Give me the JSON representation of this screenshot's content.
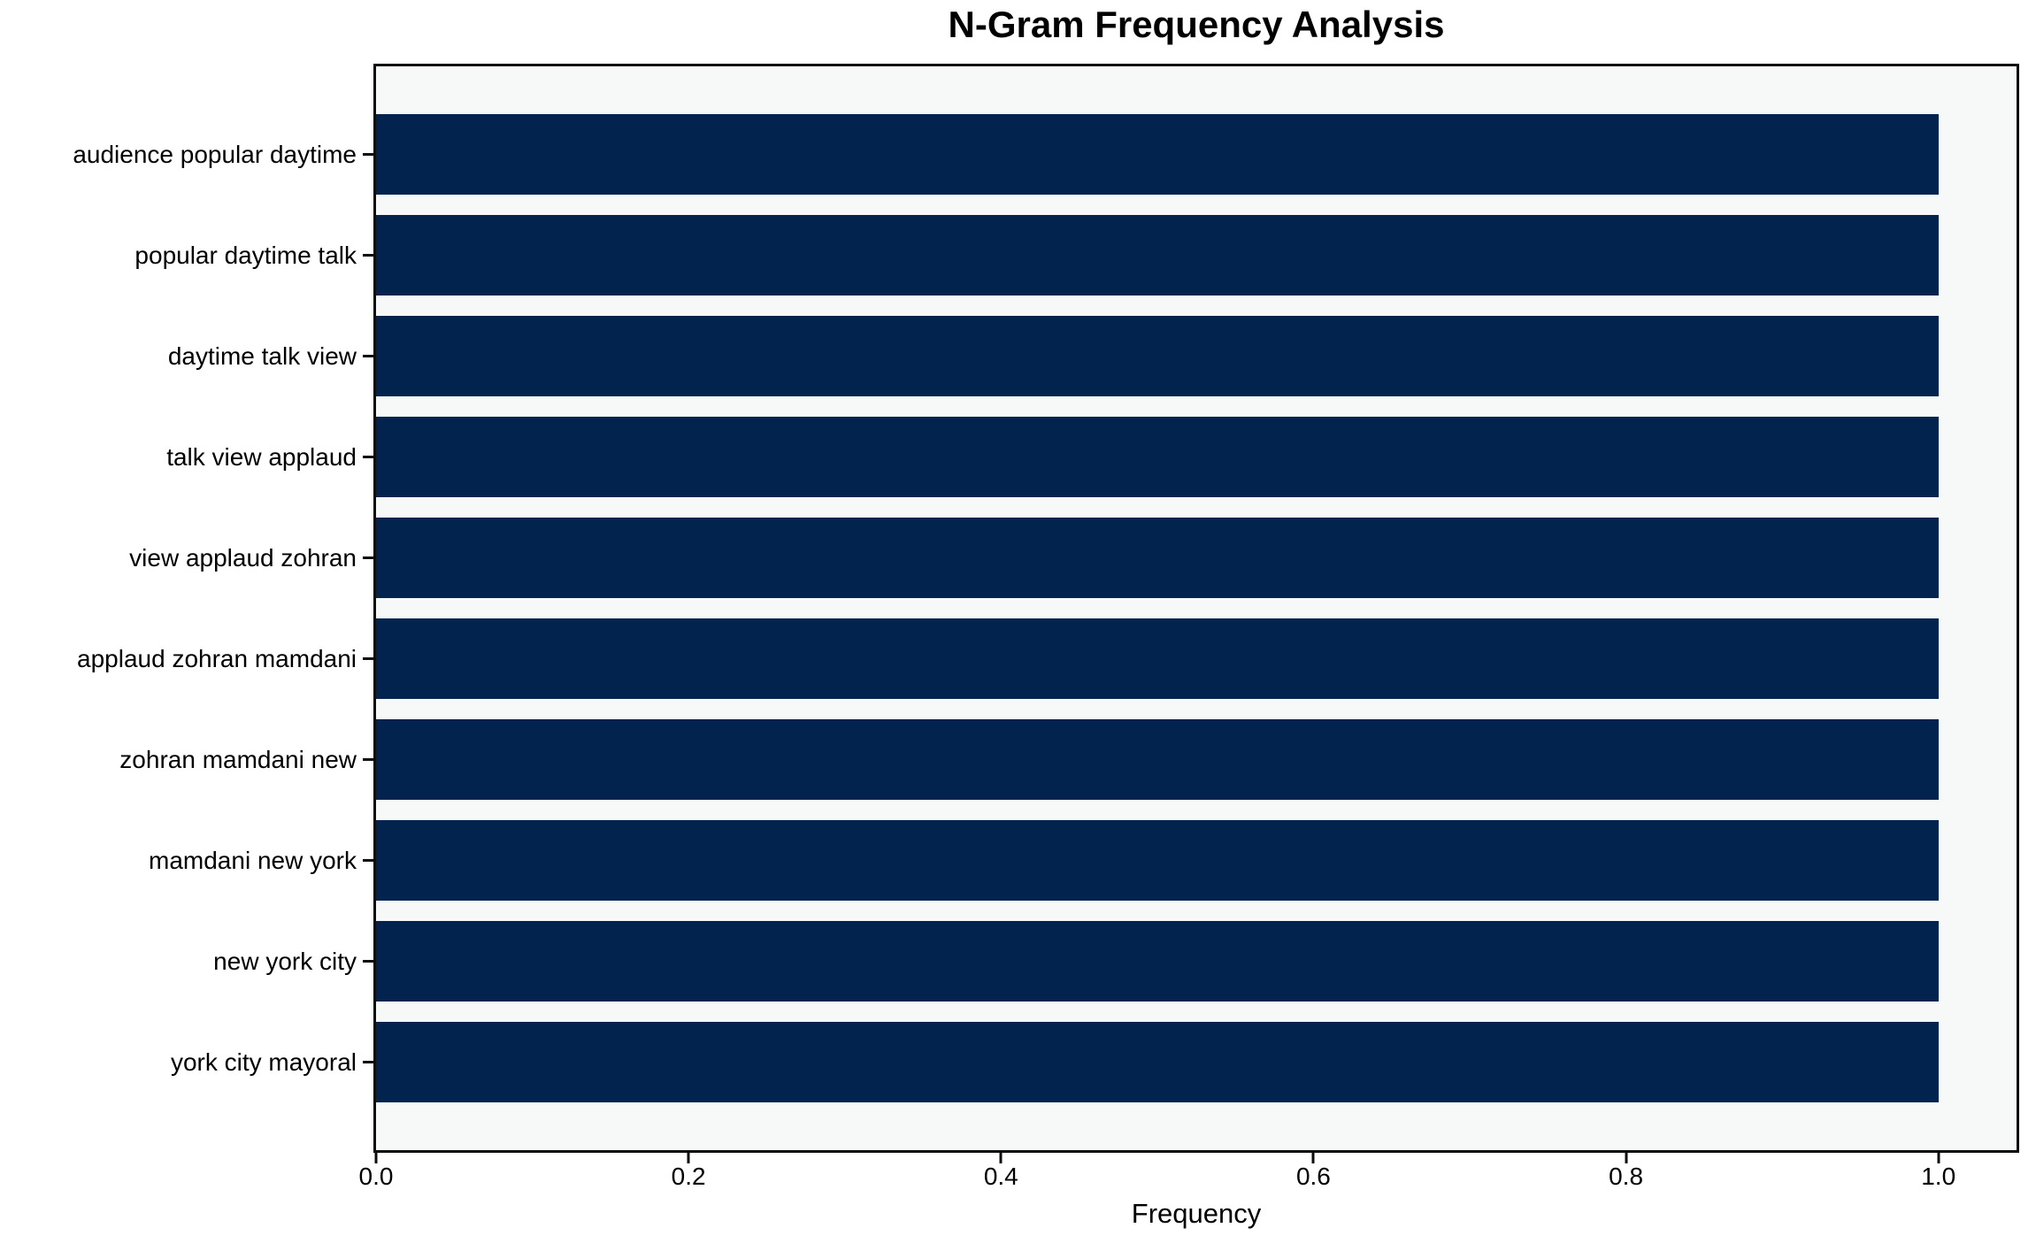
{
  "figure": {
    "background_color": "#ffffff",
    "plot_background_color": "#f7f8f8",
    "spine_color": "#0c0c0c",
    "text_color": "#000000"
  },
  "chart_data": {
    "type": "bar",
    "orientation": "horizontal",
    "title": "N-Gram Frequency Analysis",
    "xlabel": "Frequency",
    "ylabel": "",
    "categories": [
      "audience popular daytime",
      "popular daytime talk",
      "daytime talk view",
      "talk view applaud",
      "view applaud zohran",
      "applaud zohran mamdani",
      "zohran mamdani new",
      "mamdani new york",
      "new york city",
      "york city mayoral"
    ],
    "values": [
      1.0,
      1.0,
      1.0,
      1.0,
      1.0,
      1.0,
      1.0,
      1.0,
      1.0,
      1.0
    ],
    "xlim": [
      0.0,
      1.05
    ],
    "xticks": [
      0.0,
      0.2,
      0.4,
      0.6,
      0.8,
      1.0
    ],
    "xtick_labels": [
      "0.0",
      "0.2",
      "0.4",
      "0.6",
      "0.8",
      "1.0"
    ],
    "bar_color": "#02234e",
    "grid": false,
    "legend": null
  }
}
